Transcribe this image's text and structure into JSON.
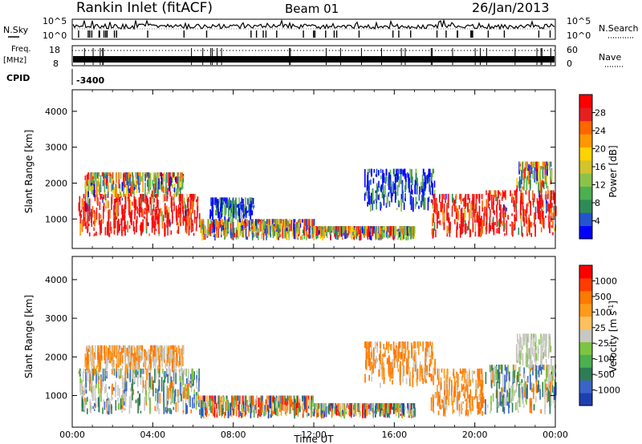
{
  "header": {
    "title": "Rankin Inlet (fitACF)",
    "beam": "Beam 01",
    "date": "26/Jan/2013"
  },
  "strips": {
    "nsky_label": "N.Sky",
    "nsearch_label": "N.Search",
    "freq_label": "Freq.",
    "freq_unit": "[MHz]",
    "nave_label": "Nave",
    "cpid_label": "CPID",
    "cpid_value": "-3400",
    "noise_ticks": [
      "10^5",
      "10^0"
    ],
    "freq_ticks": [
      "18",
      "8"
    ],
    "nave_ticks": [
      "60",
      "0"
    ]
  },
  "chart_data": [
    {
      "type": "heatmap",
      "panel": "power",
      "title": "",
      "xlabel": "",
      "ylabel": "Slant Range [km]",
      "xlim": [
        "00:00",
        "24:00"
      ],
      "ylim": [
        180,
        4600
      ],
      "yticks": [
        "1000",
        "2000",
        "3000",
        "4000"
      ],
      "grid": false,
      "colorbar": {
        "label": "Power [dB]",
        "ticks": [
          "4",
          "8",
          "12",
          "16",
          "20",
          "24",
          "28"
        ],
        "colors": [
          "#0000ff",
          "#2255cc",
          "#2e8b57",
          "#4caf50",
          "#8bc34a",
          "#d4c32a",
          "#ffd200",
          "#ff9800",
          "#ff6600",
          "#e52020",
          "#ff0000"
        ]
      },
      "echo_regions": [
        {
          "t": [
            0.3,
            6.3
          ],
          "range": [
            500,
            1600
          ],
          "level": "high"
        },
        {
          "t": [
            0.6,
            5.5
          ],
          "range": [
            1600,
            2200
          ],
          "level": "medium"
        },
        {
          "t": [
            6.3,
            12.0
          ],
          "range": [
            400,
            900
          ],
          "level": "medium"
        },
        {
          "t": [
            6.8,
            9.0
          ],
          "range": [
            900,
            1500
          ],
          "level": "low"
        },
        {
          "t": [
            12.0,
            17.0
          ],
          "range": [
            400,
            700
          ],
          "level": "medium"
        },
        {
          "t": [
            14.5,
            18.0
          ],
          "range": [
            1200,
            2300
          ],
          "level": "low"
        },
        {
          "t": [
            17.8,
            20.5
          ],
          "range": [
            450,
            1600
          ],
          "level": "high"
        },
        {
          "t": [
            20.5,
            24.0
          ],
          "range": [
            500,
            1700
          ],
          "level": "high"
        },
        {
          "t": [
            22.0,
            23.8
          ],
          "range": [
            1700,
            2500
          ],
          "level": "medium"
        }
      ]
    },
    {
      "type": "heatmap",
      "panel": "velocity",
      "title": "",
      "xlabel": "Time UT",
      "ylabel": "Slant Range [km]",
      "xlim": [
        "00:00",
        "24:00"
      ],
      "xticks": [
        "00:00",
        "04:00",
        "08:00",
        "12:00",
        "16:00",
        "20:00",
        "00:00"
      ],
      "ylim": [
        180,
        4600
      ],
      "yticks": [
        "1000",
        "2000",
        "3000",
        "4000"
      ],
      "grid": false,
      "colorbar": {
        "label": "Velocity [m s^-1]",
        "ticks": [
          "1000",
          "500",
          "100",
          "25",
          "-25",
          "-100",
          "-500",
          "-1000"
        ],
        "colors": [
          "#1e3fb0",
          "#3a64c8",
          "#2e7d55",
          "#4caf50",
          "#7cc442",
          "#c8c8c0",
          "#ffc060",
          "#ff9a1a",
          "#ff7800",
          "#ff3c00",
          "#ff0000"
        ]
      },
      "echo_regions": [
        {
          "t": [
            0.3,
            6.3
          ],
          "range": [
            500,
            1600
          ],
          "level": "mixed-positive"
        },
        {
          "t": [
            0.6,
            5.5
          ],
          "range": [
            1600,
            2200
          ],
          "level": "mixed-negative"
        },
        {
          "t": [
            6.3,
            12.0
          ],
          "range": [
            400,
            900
          ],
          "level": "mixed"
        },
        {
          "t": [
            12.0,
            17.0
          ],
          "range": [
            400,
            700
          ],
          "level": "mixed"
        },
        {
          "t": [
            14.5,
            18.0
          ],
          "range": [
            1200,
            2300
          ],
          "level": "negative"
        },
        {
          "t": [
            17.8,
            20.5
          ],
          "range": [
            450,
            1600
          ],
          "level": "negative"
        },
        {
          "t": [
            20.5,
            24.0
          ],
          "range": [
            500,
            1700
          ],
          "level": "mixed-positive"
        },
        {
          "t": [
            22.0,
            23.8
          ],
          "range": [
            1700,
            2500
          ],
          "level": "low"
        }
      ]
    }
  ]
}
